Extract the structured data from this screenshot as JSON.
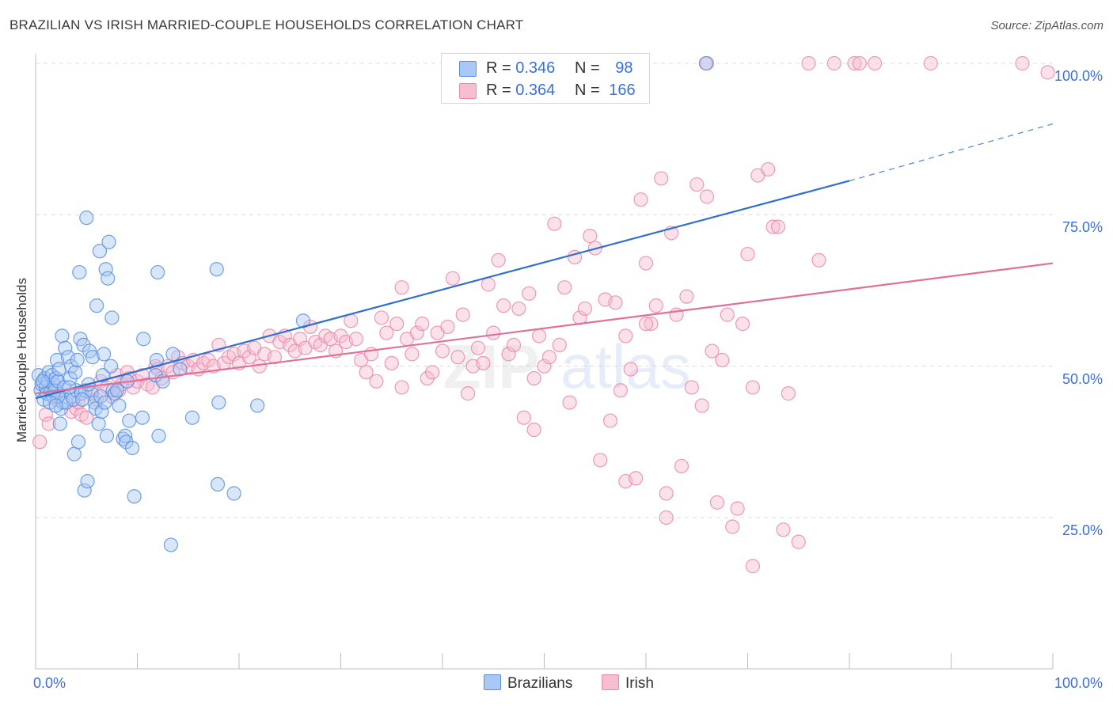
{
  "header": {
    "title": "BRAZILIAN VS IRISH MARRIED-COUPLE HOUSEHOLDS CORRELATION CHART",
    "source": "Source: ZipAtlas.com"
  },
  "legend_top": {
    "rows": [
      {
        "r_label": "R =",
        "r_value": "0.346",
        "n_label": "N =",
        "n_value": "98"
      },
      {
        "r_label": "R =",
        "r_value": "0.364",
        "n_label": "N =",
        "n_value": "166"
      }
    ]
  },
  "legend_bottom": [
    "Brazilians",
    "Irish"
  ],
  "watermark": {
    "zip": "ZIP",
    "atlas": "atlas"
  },
  "axes": {
    "ylabel": "Married-couple Households",
    "yticks": [
      "100.0%",
      "75.0%",
      "50.0%",
      "25.0%"
    ],
    "x_min_label": "0.0%",
    "x_max_label": "100.0%"
  },
  "colors": {
    "brazilians_fill": "#a9c8f5",
    "brazilians_stroke": "#5b8fe0",
    "brazilians_line": "#2f6fd0",
    "irish_fill": "#f7bdd0",
    "irish_stroke": "#e98aaa",
    "irish_line": "#e0709a",
    "accent_text": "#3a6fd8"
  },
  "chart_data": {
    "type": "scatter",
    "title": "BRAZILIAN VS IRISH MARRIED-COUPLE HOUSEHOLDS CORRELATION CHART",
    "xlabel": "",
    "ylabel": "Married-couple Households",
    "xlim": [
      0,
      100
    ],
    "ylim": [
      0,
      105
    ],
    "grid": true,
    "legend_position": "top-center",
    "series": [
      {
        "name": "Brazilians",
        "r": 0.346,
        "n": 98,
        "trend": {
          "x0": 0,
          "y0": 44.7,
          "x1": 80,
          "y1": 80.6,
          "dashed_to_x": 100,
          "dashed_to_y": 90.0
        },
        "points": [
          [
            0.3,
            48.5
          ],
          [
            0.5,
            46.0
          ],
          [
            0.6,
            47.0
          ],
          [
            0.8,
            44.5
          ],
          [
            0.9,
            48.0
          ],
          [
            1.0,
            46.5
          ],
          [
            1.1,
            45.5
          ],
          [
            1.2,
            47.5
          ],
          [
            1.3,
            49.0
          ],
          [
            1.5,
            46.0
          ],
          [
            1.6,
            48.5
          ],
          [
            1.7,
            45.0
          ],
          [
            1.8,
            47.0
          ],
          [
            1.9,
            46.0
          ],
          [
            2.0,
            48.0
          ],
          [
            2.1,
            51.0
          ],
          [
            2.2,
            47.5
          ],
          [
            2.3,
            49.5
          ],
          [
            2.4,
            40.5
          ],
          [
            2.5,
            43.0
          ],
          [
            2.6,
            55.0
          ],
          [
            2.7,
            44.0
          ],
          [
            2.8,
            46.5
          ],
          [
            2.9,
            53.0
          ],
          [
            3.0,
            44.0
          ],
          [
            3.2,
            51.5
          ],
          [
            3.4,
            48.0
          ],
          [
            3.5,
            50.0
          ],
          [
            3.6,
            45.0
          ],
          [
            3.7,
            44.5
          ],
          [
            3.8,
            35.5
          ],
          [
            3.9,
            49.0
          ],
          [
            4.0,
            46.0
          ],
          [
            4.1,
            51.0
          ],
          [
            4.2,
            37.5
          ],
          [
            4.3,
            65.5
          ],
          [
            4.4,
            54.5
          ],
          [
            4.5,
            45.5
          ],
          [
            4.7,
            53.5
          ],
          [
            4.8,
            29.5
          ],
          [
            4.9,
            46.0
          ],
          [
            5.0,
            74.5
          ],
          [
            5.1,
            31.0
          ],
          [
            5.3,
            52.5
          ],
          [
            5.5,
            45.5
          ],
          [
            5.6,
            51.5
          ],
          [
            5.8,
            44.0
          ],
          [
            5.9,
            43.0
          ],
          [
            6.0,
            60.0
          ],
          [
            6.2,
            40.5
          ],
          [
            6.3,
            69.0
          ],
          [
            6.4,
            45.0
          ],
          [
            6.5,
            42.5
          ],
          [
            6.6,
            48.5
          ],
          [
            6.7,
            52.0
          ],
          [
            6.9,
            66.0
          ],
          [
            7.0,
            38.5
          ],
          [
            7.1,
            64.5
          ],
          [
            7.2,
            70.5
          ],
          [
            7.4,
            50.0
          ],
          [
            7.5,
            58.0
          ],
          [
            7.6,
            46.0
          ],
          [
            7.8,
            45.5
          ],
          [
            8.2,
            43.5
          ],
          [
            8.6,
            38.0
          ],
          [
            8.8,
            38.5
          ],
          [
            8.9,
            37.5
          ],
          [
            9.2,
            41.0
          ],
          [
            9.5,
            36.5
          ],
          [
            9.7,
            28.5
          ],
          [
            10.5,
            41.5
          ],
          [
            10.6,
            54.5
          ],
          [
            11.8,
            48.5
          ],
          [
            11.9,
            51.0
          ],
          [
            12.0,
            65.5
          ],
          [
            12.1,
            38.5
          ],
          [
            12.5,
            47.5
          ],
          [
            13.3,
            20.5
          ],
          [
            13.5,
            52.0
          ],
          [
            14.2,
            49.5
          ],
          [
            15.4,
            41.5
          ],
          [
            17.8,
            66.0
          ],
          [
            17.9,
            30.5
          ],
          [
            18.0,
            44.0
          ],
          [
            19.5,
            29.0
          ],
          [
            21.8,
            43.5
          ],
          [
            26.3,
            57.5
          ],
          [
            65.9,
            100.0
          ],
          [
            5.2,
            47.0
          ],
          [
            6.8,
            44.0
          ],
          [
            2.2,
            45.0
          ],
          [
            3.3,
            46.5
          ],
          [
            1.4,
            44.0
          ],
          [
            0.7,
            47.5
          ],
          [
            8.0,
            46.0
          ],
          [
            9.0,
            47.5
          ],
          [
            4.6,
            44.5
          ],
          [
            2.0,
            43.5
          ]
        ]
      },
      {
        "name": "Irish",
        "r": 0.364,
        "n": 166,
        "trend": {
          "x0": 0,
          "y0": 45.5,
          "x1": 100,
          "y1": 67.0
        },
        "points": [
          [
            0.4,
            37.5
          ],
          [
            1.0,
            42.0
          ],
          [
            1.3,
            40.5
          ],
          [
            2.0,
            44.5
          ],
          [
            3.5,
            42.5
          ],
          [
            4.0,
            43.0
          ],
          [
            4.2,
            44.0
          ],
          [
            4.5,
            42.0
          ],
          [
            5.0,
            41.5
          ],
          [
            5.5,
            46.0
          ],
          [
            6.0,
            44.5
          ],
          [
            6.4,
            47.5
          ],
          [
            7.0,
            46.5
          ],
          [
            7.5,
            45.0
          ],
          [
            8.0,
            48.5
          ],
          [
            8.2,
            46.0
          ],
          [
            8.5,
            47.0
          ],
          [
            9.0,
            49.0
          ],
          [
            9.2,
            48.0
          ],
          [
            9.6,
            46.5
          ],
          [
            10.0,
            47.5
          ],
          [
            10.5,
            48.5
          ],
          [
            11.0,
            47.0
          ],
          [
            11.5,
            46.5
          ],
          [
            11.8,
            50.0
          ],
          [
            12.0,
            49.5
          ],
          [
            12.4,
            48.0
          ],
          [
            13.0,
            50.0
          ],
          [
            13.5,
            49.0
          ],
          [
            14.0,
            51.5
          ],
          [
            14.5,
            50.5
          ],
          [
            15.0,
            50.0
          ],
          [
            15.5,
            51.0
          ],
          [
            16.0,
            49.5
          ],
          [
            16.5,
            50.5
          ],
          [
            17.0,
            51.0
          ],
          [
            17.5,
            50.0
          ],
          [
            18.0,
            53.5
          ],
          [
            18.5,
            50.5
          ],
          [
            19.0,
            51.5
          ],
          [
            19.5,
            52.0
          ],
          [
            20.0,
            50.5
          ],
          [
            20.5,
            52.5
          ],
          [
            21.0,
            51.5
          ],
          [
            21.5,
            53.0
          ],
          [
            22.0,
            50.0
          ],
          [
            22.5,
            52.0
          ],
          [
            23.0,
            55.0
          ],
          [
            23.5,
            51.5
          ],
          [
            24.0,
            54.0
          ],
          [
            24.5,
            55.0
          ],
          [
            25.0,
            53.5
          ],
          [
            25.5,
            52.5
          ],
          [
            26.0,
            54.5
          ],
          [
            26.5,
            53.0
          ],
          [
            27.0,
            56.5
          ],
          [
            27.5,
            54.0
          ],
          [
            28.0,
            53.5
          ],
          [
            28.5,
            55.0
          ],
          [
            29.0,
            54.5
          ],
          [
            29.5,
            52.5
          ],
          [
            30.0,
            55.0
          ],
          [
            30.5,
            54.0
          ],
          [
            31.0,
            57.5
          ],
          [
            31.5,
            54.5
          ],
          [
            32.0,
            51.0
          ],
          [
            32.5,
            49.0
          ],
          [
            33.0,
            52.0
          ],
          [
            33.5,
            47.5
          ],
          [
            34.0,
            58.0
          ],
          [
            34.5,
            55.5
          ],
          [
            35.0,
            50.5
          ],
          [
            35.5,
            57.0
          ],
          [
            36.0,
            63.0
          ],
          [
            36.5,
            54.5
          ],
          [
            37.0,
            52.0
          ],
          [
            37.5,
            55.5
          ],
          [
            38.0,
            57.0
          ],
          [
            38.5,
            48.0
          ],
          [
            39.0,
            49.0
          ],
          [
            39.5,
            55.5
          ],
          [
            40.0,
            52.5
          ],
          [
            40.5,
            56.5
          ],
          [
            41.0,
            64.5
          ],
          [
            41.5,
            51.5
          ],
          [
            42.0,
            58.5
          ],
          [
            42.5,
            45.5
          ],
          [
            43.0,
            50.0
          ],
          [
            43.5,
            53.0
          ],
          [
            44.0,
            50.5
          ],
          [
            44.5,
            63.5
          ],
          [
            45.0,
            55.5
          ],
          [
            45.5,
            67.5
          ],
          [
            46.0,
            60.0
          ],
          [
            46.5,
            52.0
          ],
          [
            47.0,
            53.5
          ],
          [
            47.5,
            59.5
          ],
          [
            48.0,
            41.5
          ],
          [
            48.5,
            62.0
          ],
          [
            49.0,
            39.5
          ],
          [
            49.5,
            55.0
          ],
          [
            50.0,
            50.0
          ],
          [
            50.5,
            51.5
          ],
          [
            51.0,
            73.5
          ],
          [
            51.5,
            53.5
          ],
          [
            52.0,
            63.0
          ],
          [
            52.5,
            44.0
          ],
          [
            53.0,
            68.0
          ],
          [
            53.5,
            58.0
          ],
          [
            54.0,
            59.5
          ],
          [
            54.5,
            71.5
          ],
          [
            55.0,
            69.5
          ],
          [
            55.5,
            34.5
          ],
          [
            56.0,
            61.0
          ],
          [
            56.5,
            41.0
          ],
          [
            57.0,
            60.5
          ],
          [
            57.5,
            46.0
          ],
          [
            58.0,
            31.0
          ],
          [
            58.5,
            49.5
          ],
          [
            59.0,
            31.5
          ],
          [
            59.5,
            77.5
          ],
          [
            60.0,
            67.0
          ],
          [
            60.5,
            57.0
          ],
          [
            61.0,
            60.0
          ],
          [
            61.5,
            81.0
          ],
          [
            62.0,
            29.0
          ],
          [
            62.5,
            72.0
          ],
          [
            63.0,
            58.5
          ],
          [
            63.5,
            33.5
          ],
          [
            64.0,
            61.5
          ],
          [
            64.5,
            46.5
          ],
          [
            65.0,
            80.0
          ],
          [
            65.5,
            43.5
          ],
          [
            66.0,
            78.0
          ],
          [
            66.5,
            52.5
          ],
          [
            67.0,
            27.5
          ],
          [
            67.5,
            51.0
          ],
          [
            68.0,
            58.5
          ],
          [
            68.5,
            23.5
          ],
          [
            69.0,
            26.5
          ],
          [
            69.5,
            57.0
          ],
          [
            70.0,
            68.5
          ],
          [
            70.5,
            46.5
          ],
          [
            71.0,
            81.5
          ],
          [
            72.0,
            82.5
          ],
          [
            72.5,
            73.0
          ],
          [
            73.0,
            73.0
          ],
          [
            73.5,
            23.0
          ],
          [
            74.0,
            45.5
          ],
          [
            75.0,
            21.0
          ],
          [
            76.0,
            100.0
          ],
          [
            77.0,
            67.5
          ],
          [
            78.5,
            100.0
          ],
          [
            80.5,
            100.0
          ],
          [
            81.0,
            100.0
          ],
          [
            82.5,
            100.0
          ],
          [
            88.0,
            100.0
          ],
          [
            97.0,
            100.0
          ],
          [
            99.5,
            98.5
          ],
          [
            66.0,
            100.0
          ],
          [
            62.0,
            25.0
          ],
          [
            70.5,
            17.0
          ],
          [
            60.0,
            57.0
          ],
          [
            58.0,
            55.0
          ],
          [
            36.0,
            46.5
          ],
          [
            49.0,
            48.0
          ]
        ]
      }
    ]
  }
}
